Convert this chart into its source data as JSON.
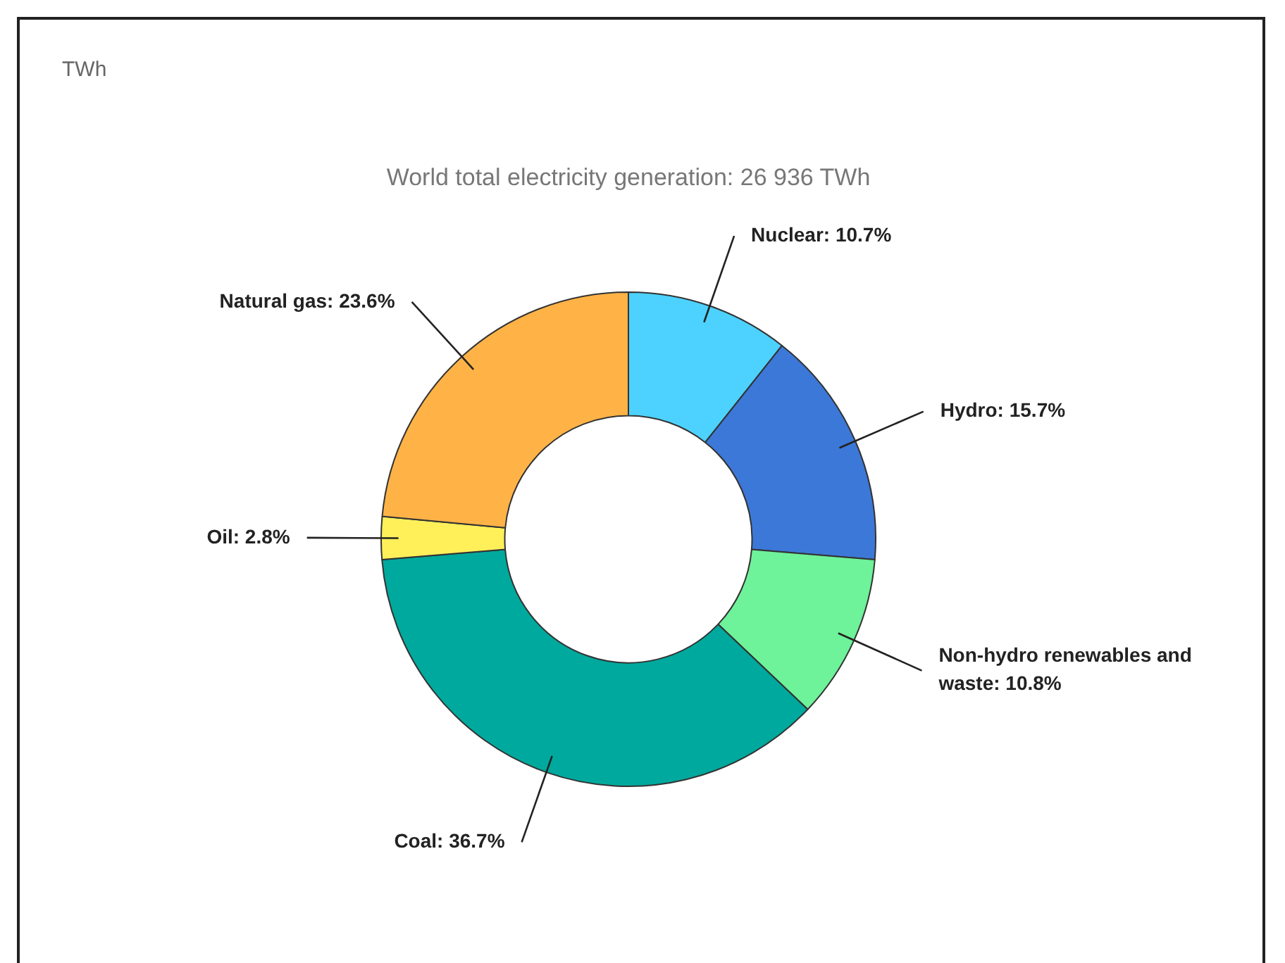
{
  "chart_data": {
    "type": "donut",
    "title": "World total electricity generation: 26 936 TWh",
    "annotations": [
      "TWh"
    ],
    "categories": [
      "Nuclear",
      "Hydro",
      "Non-hydro renewables and waste",
      "Coal",
      "Oil",
      "Natural gas"
    ],
    "values": [
      10.7,
      15.7,
      10.8,
      36.7,
      2.8,
      23.6
    ],
    "value_labels": [
      "10.7%",
      "15.7%",
      "10.8%",
      "36.7%",
      "2.8%",
      "23.6%"
    ],
    "colors": [
      "#4dd2ff",
      "#3c78d8",
      "#6ef29a",
      "#00a99d",
      "#fff05a",
      "#ffb347"
    ],
    "legend": false
  }
}
